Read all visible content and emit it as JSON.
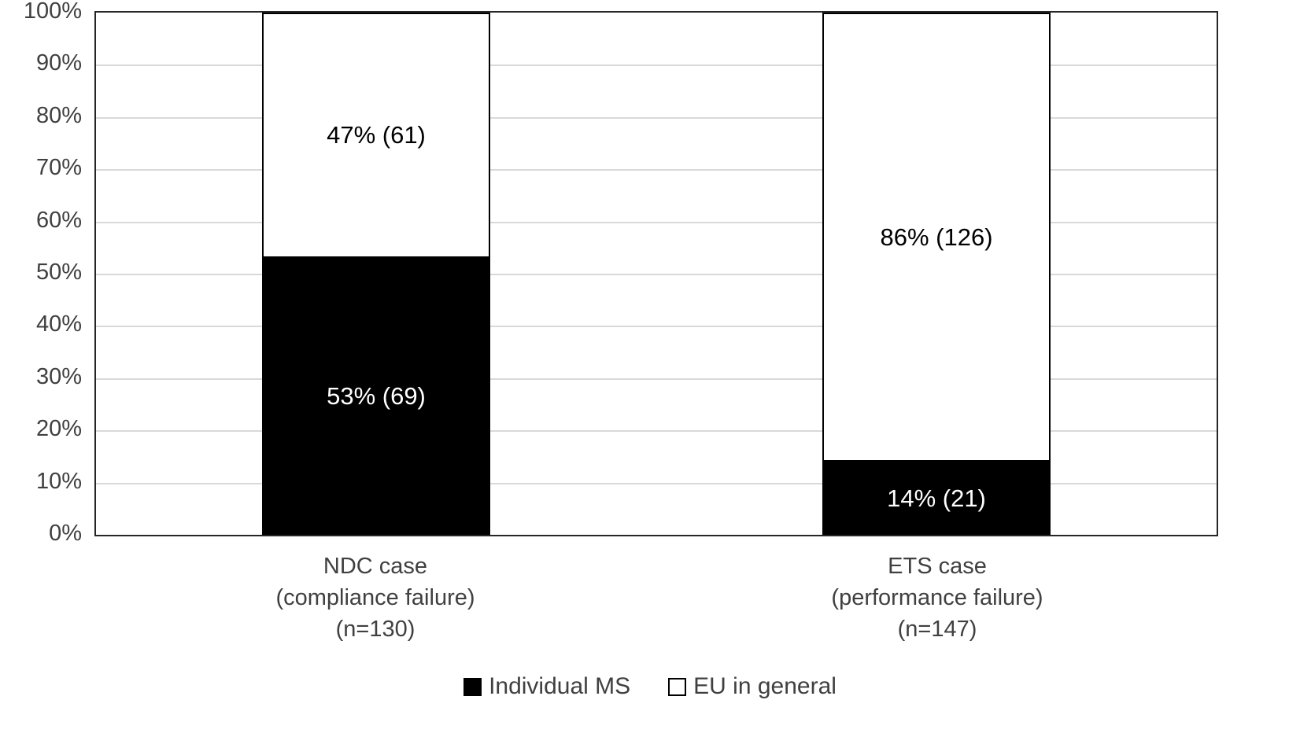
{
  "chart_data": {
    "type": "bar",
    "subtype": "stacked-100-percent-column",
    "title": "",
    "xlabel": "",
    "ylabel": "",
    "categories": [
      {
        "lines": [
          "NDC case",
          "(compliance failure)",
          "(n=130)"
        ]
      },
      {
        "lines": [
          "ETS case",
          "(performance failure)",
          "(n=147)"
        ]
      }
    ],
    "series": [
      {
        "name": "Individual MS",
        "color": "#000000",
        "label_color": "#ffffff",
        "values": [
          53,
          14
        ],
        "counts": [
          69,
          21
        ],
        "labels": [
          "53% (69)",
          "14% (21)"
        ]
      },
      {
        "name": "EU in general",
        "color": "#ffffff",
        "label_color": "#000000",
        "values": [
          47,
          86
        ],
        "counts": [
          61,
          126
        ],
        "labels": [
          "47% (61)",
          "86% (126)"
        ]
      }
    ],
    "y_axis": {
      "min": 0,
      "max": 100,
      "tick_step": 10,
      "tick_labels": [
        "0%",
        "10%",
        "20%",
        "30%",
        "40%",
        "50%",
        "60%",
        "70%",
        "80%",
        "90%",
        "100%"
      ]
    },
    "grid": true,
    "legend_position": "bottom",
    "style": {
      "gridline_color": "#d9d9d9",
      "plot_border_color": "#262626",
      "axis_text_color": "#404040"
    }
  }
}
